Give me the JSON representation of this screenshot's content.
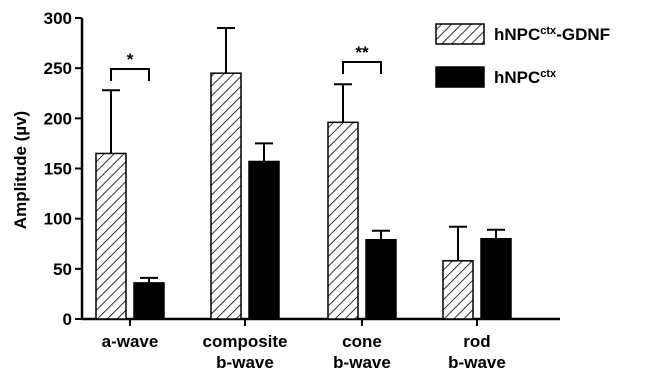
{
  "chart_data": {
    "type": "bar",
    "title": "",
    "xlabel": "",
    "ylabel": "Amplitude (µv)",
    "ylim": [
      0,
      300
    ],
    "yticks": [
      "0",
      "50",
      "100",
      "150",
      "200",
      "250",
      "300"
    ],
    "categories": [
      [
        "a-wave"
      ],
      [
        "composite",
        "b-wave"
      ],
      [
        "cone",
        "b-wave"
      ],
      [
        "rod",
        "b-wave"
      ]
    ],
    "series": [
      {
        "name": "hNPC",
        "name_sup": "ctx",
        "name_suffix": "-GDNF",
        "pattern": "hatched",
        "values": [
          165,
          245,
          196,
          58
        ],
        "errors": [
          63,
          45,
          38,
          34
        ]
      },
      {
        "name": "hNPC",
        "name_sup": "ctx",
        "name_suffix": "",
        "pattern": "solid",
        "values": [
          36,
          157,
          79,
          80
        ],
        "errors": [
          5,
          18,
          9,
          9
        ]
      }
    ],
    "annotations": [
      {
        "category": 0,
        "label": "*"
      },
      {
        "category": 2,
        "label": "**"
      }
    ],
    "legend_position": "top-right",
    "grid": false,
    "colors": {
      "bar_fill_solid": "#000000",
      "hatch": "#000000",
      "background": "#ffffff"
    }
  }
}
